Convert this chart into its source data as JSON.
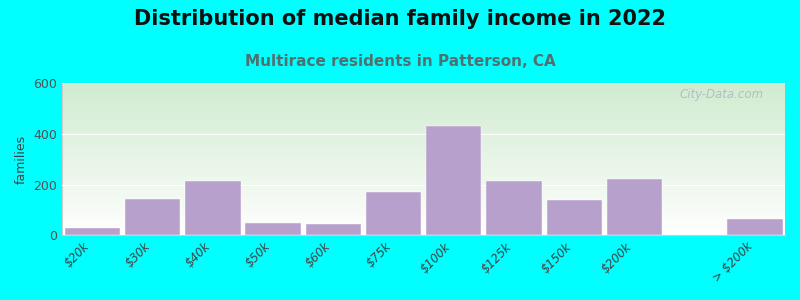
{
  "title": "Distribution of median family income in 2022",
  "subtitle": "Multirace residents in Patterson, CA",
  "ylabel": "families",
  "background_outer": "#00FFFF",
  "background_inner_top_left": "#d8edd8",
  "background_inner_bottom_right": "#f8faf8",
  "bar_color": "#b8a0cc",
  "bar_edge_color": "#b8a0cc",
  "categories": [
    "$20k",
    "$30k",
    "$40k",
    "$50k",
    "$60k",
    "$75k",
    "$100k",
    "$125k",
    "$150k",
    "$200k",
    "> $200k"
  ],
  "values": [
    30,
    145,
    215,
    50,
    45,
    170,
    430,
    215,
    140,
    220,
    65
  ],
  "ylim": [
    0,
    600
  ],
  "yticks": [
    0,
    200,
    400,
    600
  ],
  "title_fontsize": 15,
  "subtitle_fontsize": 11,
  "subtitle_color": "#507070",
  "watermark_text": "City-Data.com",
  "watermark_color": "#aab8c0",
  "bar_width": 0.92,
  "bar_positions": [
    0,
    1,
    2,
    3,
    4,
    5,
    6,
    7,
    8,
    9,
    11
  ]
}
